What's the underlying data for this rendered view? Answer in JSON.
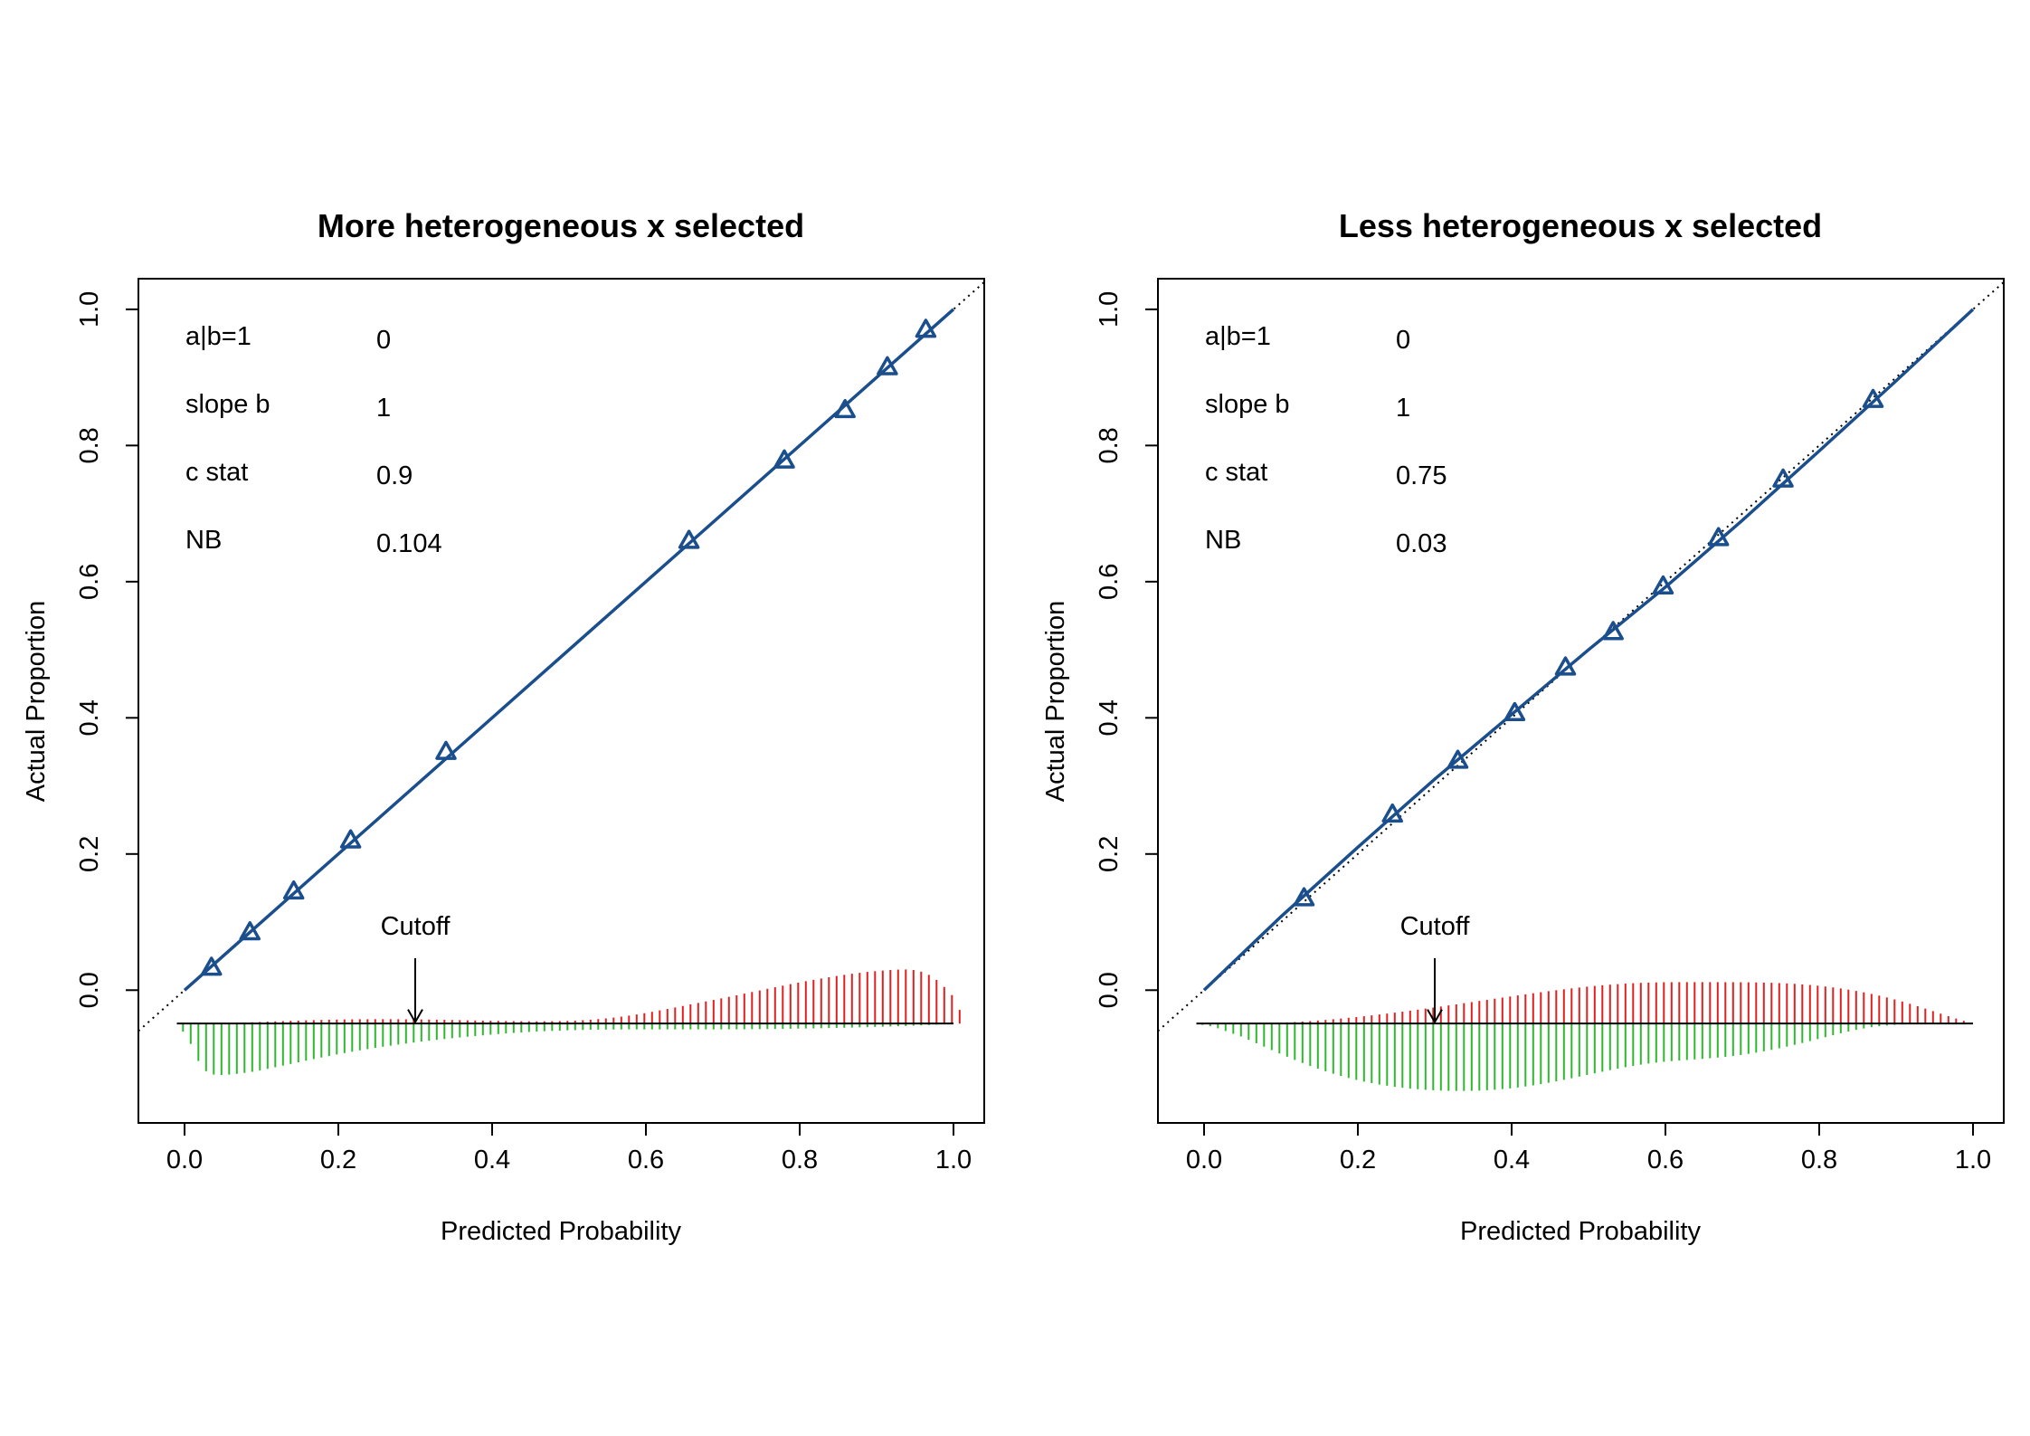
{
  "chart_data": [
    {
      "type": "scatter",
      "title": "More heterogeneous x selected",
      "xlabel": "Predicted Probability",
      "ylabel": "Actual Proportion",
      "xlim": [
        -0.06,
        1.04
      ],
      "ylim": [
        -0.195,
        1.045
      ],
      "x_ticks": [
        "0.0",
        "0.2",
        "0.4",
        "0.6",
        "0.8",
        "1.0"
      ],
      "y_ticks": [
        "0.0",
        "0.2",
        "0.4",
        "0.6",
        "0.8",
        "1.0"
      ],
      "stats": [
        {
          "label": "a|b=1",
          "value": "0"
        },
        {
          "label": "slope b",
          "value": "1"
        },
        {
          "label": "c stat",
          "value": "0.9"
        },
        {
          "label": "NB",
          "value": "0.104"
        }
      ],
      "cutoff": {
        "label": "Cutoff",
        "x": 0.3
      },
      "series": [
        {
          "type": "line",
          "style": "dotted",
          "color": "#000000",
          "x": [
            -0.06,
            1.04
          ],
          "y": [
            -0.06,
            1.04
          ]
        },
        {
          "type": "line",
          "style": "solid",
          "color": "#1a4e8c",
          "x": [
            0.0,
            1.0
          ],
          "y": [
            0.0,
            1.0
          ]
        },
        {
          "type": "scatter",
          "marker": "triangle",
          "color": "#1a4e8c",
          "x": [
            0.035,
            0.085,
            0.142,
            0.216,
            0.34,
            0.656,
            0.78,
            0.859,
            0.914,
            0.964
          ],
          "y": [
            0.033,
            0.085,
            0.145,
            0.22,
            0.35,
            0.66,
            0.778,
            0.852,
            0.915,
            0.97
          ]
        }
      ],
      "histogram": {
        "baseline": -0.049,
        "bin_start": -0.002,
        "bin_width": 0.01,
        "events_color": "#df2020",
        "nonevents_color": "#2db82d",
        "events": [
          0,
          0,
          0,
          0,
          0.0002,
          0.0005,
          0.0008,
          0.0012,
          0.0015,
          0.0019,
          0.0023,
          0.0028,
          0.0032,
          0.0036,
          0.004,
          0.0043,
          0.0047,
          0.005,
          0.0053,
          0.0056,
          0.0058,
          0.006,
          0.0061,
          0.0063,
          0.0063,
          0.0064,
          0.0064,
          0.0064,
          0.0063,
          0.0062,
          0.0061,
          0.006,
          0.0058,
          0.0056,
          0.0054,
          0.0052,
          0.005,
          0.0047,
          0.0045,
          0.0043,
          0.0041,
          0.0039,
          0.0037,
          0.0035,
          0.0034,
          0.0033,
          0.0032,
          0.0033,
          0.0034,
          0.0036,
          0.0039,
          0.0043,
          0.0049,
          0.0056,
          0.0065,
          0.0075,
          0.0087,
          0.0101,
          0.0116,
          0.0133,
          0.0152,
          0.0172,
          0.0193,
          0.0214,
          0.0236,
          0.0258,
          0.0281,
          0.0303,
          0.0325,
          0.0347,
          0.0369,
          0.0392,
          0.0415,
          0.0439,
          0.0463,
          0.0486,
          0.051,
          0.0533,
          0.0556,
          0.0579,
          0.0601,
          0.0622,
          0.0642,
          0.0661,
          0.068,
          0.0698,
          0.0715,
          0.0731,
          0.0745,
          0.0758,
          0.0769,
          0.0778,
          0.0786,
          0.0792,
          0.0794,
          0.0786,
          0.0762,
          0.0715,
          0.064,
          0.0537,
          0.0418,
          0.02
        ],
        "nonevents": [
          0.012,
          0.03,
          0.055,
          0.07,
          0.075,
          0.0755,
          0.075,
          0.074,
          0.0725,
          0.0709,
          0.0688,
          0.0666,
          0.0642,
          0.0618,
          0.0594,
          0.057,
          0.0546,
          0.0522,
          0.0499,
          0.0476,
          0.0455,
          0.0434,
          0.0414,
          0.0394,
          0.0376,
          0.0358,
          0.0341,
          0.0325,
          0.0309,
          0.0294,
          0.028,
          0.0266,
          0.0253,
          0.024,
          0.0228,
          0.0216,
          0.0205,
          0.0194,
          0.0184,
          0.0174,
          0.0164,
          0.0155,
          0.0146,
          0.0138,
          0.0131,
          0.0124,
          0.0118,
          0.0113,
          0.0108,
          0.0104,
          0.01,
          0.0097,
          0.0094,
          0.0092,
          0.009,
          0.0089,
          0.0088,
          0.0087,
          0.0086,
          0.0086,
          0.0086,
          0.0086,
          0.0086,
          0.0086,
          0.0086,
          0.0086,
          0.0086,
          0.0086,
          0.0086,
          0.0086,
          0.0086,
          0.0085,
          0.0085,
          0.0084,
          0.0083,
          0.0082,
          0.0081,
          0.008,
          0.0078,
          0.0077,
          0.0075,
          0.0073,
          0.0071,
          0.0069,
          0.0067,
          0.0064,
          0.0062,
          0.0059,
          0.0056,
          0.0053,
          0.005,
          0.0047,
          0.0043,
          0.004,
          0.0036,
          0.0031,
          0.0027,
          0.0022,
          0.0017,
          0.0012,
          0.0007,
          0.0002
        ]
      }
    },
    {
      "type": "scatter",
      "title": "Less heterogeneous x selected",
      "xlabel": "Predicted Probability",
      "ylabel": "Actual Proportion",
      "xlim": [
        -0.06,
        1.04
      ],
      "ylim": [
        -0.195,
        1.045
      ],
      "x_ticks": [
        "0.0",
        "0.2",
        "0.4",
        "0.6",
        "0.8",
        "1.0"
      ],
      "y_ticks": [
        "0.0",
        "0.2",
        "0.4",
        "0.6",
        "0.8",
        "1.0"
      ],
      "stats": [
        {
          "label": "a|b=1",
          "value": "0"
        },
        {
          "label": "slope b",
          "value": "1"
        },
        {
          "label": "c stat",
          "value": "0.75"
        },
        {
          "label": "NB",
          "value": "0.03"
        }
      ],
      "cutoff": {
        "label": "Cutoff",
        "x": 0.3
      },
      "series": [
        {
          "type": "line",
          "style": "dotted",
          "color": "#000000",
          "x": [
            -0.06,
            1.04
          ],
          "y": [
            -0.06,
            1.04
          ]
        },
        {
          "type": "line",
          "style": "solid",
          "color": "#1a4e8c",
          "x": [
            0.0,
            0.1,
            0.2,
            0.3,
            0.4,
            0.5,
            0.6,
            0.7,
            0.8,
            0.9,
            1.0
          ],
          "y": [
            0.0,
            0.108,
            0.21,
            0.31,
            0.405,
            0.5,
            0.592,
            0.69,
            0.792,
            0.895,
            1.0
          ]
        },
        {
          "type": "scatter",
          "marker": "triangle",
          "color": "#1a4e8c",
          "x": [
            0.13,
            0.245,
            0.33,
            0.404,
            0.47,
            0.532,
            0.597,
            0.669,
            0.753,
            0.87
          ],
          "y": [
            0.135,
            0.258,
            0.337,
            0.407,
            0.474,
            0.526,
            0.593,
            0.664,
            0.75,
            0.867
          ]
        }
      ],
      "histogram": {
        "baseline": -0.049,
        "bin_start": -0.002,
        "bin_width": 0.01,
        "events_color": "#df2020",
        "nonevents_color": "#2db82d",
        "events": [
          0,
          0,
          0,
          0,
          0,
          0,
          0,
          0.0002,
          0.0004,
          0.0007,
          0.0011,
          0.0016,
          0.0022,
          0.0029,
          0.0036,
          0.0044,
          0.0053,
          0.0063,
          0.0073,
          0.0084,
          0.0095,
          0.0107,
          0.012,
          0.0133,
          0.0146,
          0.016,
          0.0174,
          0.0189,
          0.0204,
          0.0219,
          0.0234,
          0.025,
          0.0266,
          0.0282,
          0.0299,
          0.0315,
          0.0332,
          0.0348,
          0.0365,
          0.0381,
          0.0397,
          0.0413,
          0.0429,
          0.0445,
          0.046,
          0.0475,
          0.0489,
          0.0503,
          0.0516,
          0.0529,
          0.0541,
          0.0552,
          0.0562,
          0.0571,
          0.0579,
          0.0586,
          0.0592,
          0.0597,
          0.0601,
          0.0604,
          0.0606,
          0.0607,
          0.0608,
          0.0608,
          0.0608,
          0.0608,
          0.0608,
          0.0608,
          0.0607,
          0.0607,
          0.0606,
          0.0605,
          0.0603,
          0.0601,
          0.0598,
          0.0594,
          0.0589,
          0.0583,
          0.0575,
          0.0566,
          0.0556,
          0.0544,
          0.053,
          0.0515,
          0.0498,
          0.0479,
          0.0458,
          0.0435,
          0.041,
          0.0383,
          0.0354,
          0.0323,
          0.029,
          0.0255,
          0.0219,
          0.0182,
          0.0145,
          0.0108,
          0.0073,
          0.004,
          0,
          0
        ],
        "nonevents": [
          0.002,
          0.004,
          0.007,
          0.011,
          0.015,
          0.019,
          0.024,
          0.029,
          0.034,
          0.039,
          0.044,
          0.0488,
          0.0535,
          0.058,
          0.0623,
          0.0663,
          0.0701,
          0.0737,
          0.077,
          0.08,
          0.0828,
          0.0853,
          0.0876,
          0.0896,
          0.0914,
          0.093,
          0.0943,
          0.0955,
          0.0965,
          0.0973,
          0.098,
          0.0985,
          0.0988,
          0.099,
          0.099,
          0.0988,
          0.0985,
          0.098,
          0.0973,
          0.0964,
          0.0953,
          0.094,
          0.0925,
          0.0908,
          0.089,
          0.087,
          0.0849,
          0.0827,
          0.0804,
          0.078,
          0.0756,
          0.0732,
          0.0708,
          0.0685,
          0.0663,
          0.0642,
          0.0622,
          0.0604,
          0.0588,
          0.0574,
          0.0562,
          0.0552,
          0.0543,
          0.0535,
          0.0527,
          0.0519,
          0.051,
          0.05,
          0.0489,
          0.0476,
          0.0462,
          0.0446,
          0.0428,
          0.0408,
          0.0387,
          0.0364,
          0.0339,
          0.0313,
          0.0286,
          0.0258,
          0.0229,
          0.02,
          0.0171,
          0.0143,
          0.0117,
          0.0093,
          0.0072,
          0.0054,
          0.004,
          0.0029,
          0.002,
          0.0013,
          0.0008,
          0.0004,
          0.0002,
          0,
          0,
          0,
          0,
          0,
          0,
          0
        ]
      }
    }
  ]
}
